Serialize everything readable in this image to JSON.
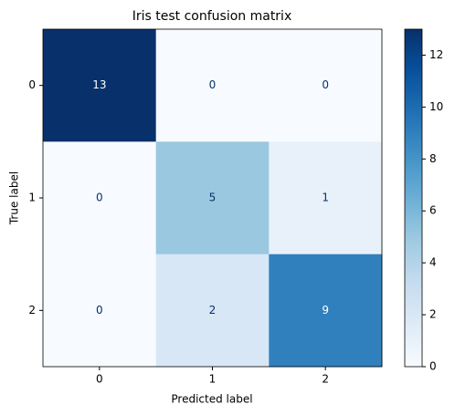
{
  "chart_data": {
    "type": "heatmap",
    "title": "Iris test confusion matrix",
    "xlabel": "Predicted label",
    "ylabel": "True label",
    "x_categories": [
      "0",
      "1",
      "2"
    ],
    "y_categories": [
      "0",
      "1",
      "2"
    ],
    "values": [
      [
        13,
        0,
        0
      ],
      [
        0,
        5,
        1
      ],
      [
        0,
        2,
        9
      ]
    ],
    "colormap": "Blues",
    "clim": [
      0,
      13
    ],
    "cticks": [
      0,
      2,
      4,
      6,
      8,
      10,
      12
    ]
  }
}
